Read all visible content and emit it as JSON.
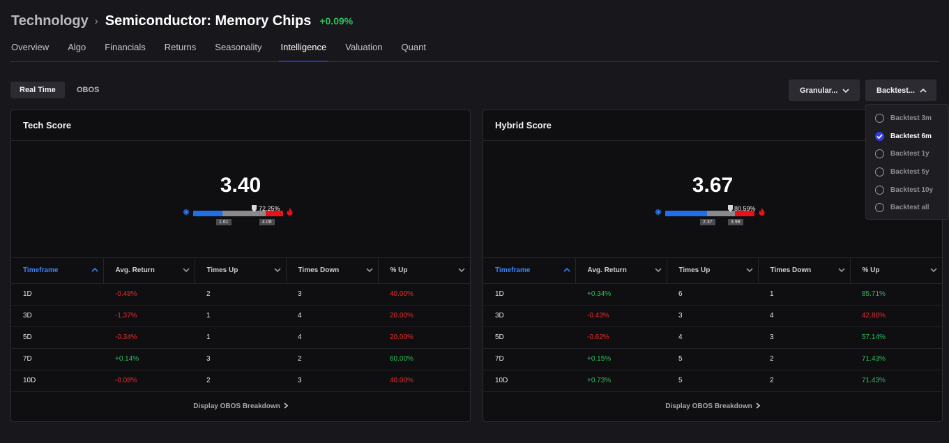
{
  "breadcrumb": {
    "parent": "Technology",
    "separator": "›",
    "current": "Semiconductor: Memory Chips",
    "change": "+0.09%"
  },
  "tabs": [
    {
      "label": "Overview",
      "active": false
    },
    {
      "label": "Algo",
      "active": false
    },
    {
      "label": "Financials",
      "active": false
    },
    {
      "label": "Returns",
      "active": false
    },
    {
      "label": "Seasonality",
      "active": false
    },
    {
      "label": "Intelligence",
      "active": true
    },
    {
      "label": "Valuation",
      "active": false
    },
    {
      "label": "Quant",
      "active": false
    }
  ],
  "mode": {
    "realtime": "Real Time",
    "obos": "OBOS",
    "selected": "Real Time"
  },
  "controls": {
    "granularity": "Granular...",
    "backtest": "Backtest..."
  },
  "backtest_menu": [
    {
      "label": "Backtest 3m",
      "checked": false
    },
    {
      "label": "Backtest 6m",
      "checked": true
    },
    {
      "label": "Backtest 1y",
      "checked": false
    },
    {
      "label": "Backtest 5y",
      "checked": false
    },
    {
      "label": "Backtest 10y",
      "checked": false
    },
    {
      "label": "Backtest all",
      "checked": false
    }
  ],
  "columns": [
    "Timeframe",
    "Avg. Return",
    "Times Up",
    "Times Down",
    "% Up"
  ],
  "panels": [
    {
      "title": "Tech Score",
      "score": "3.40",
      "gauge": {
        "percentile": "72.25%",
        "low": "1.61",
        "high": "4.08",
        "percentile_value": 0.7225
      },
      "rows": [
        [
          "1D",
          "-0.48%",
          "2",
          "3",
          "40.00%"
        ],
        [
          "3D",
          "-1.37%",
          "1",
          "4",
          "20.00%"
        ],
        [
          "5D",
          "-0.34%",
          "1",
          "4",
          "20.00%"
        ],
        [
          "7D",
          "+0.14%",
          "3",
          "2",
          "60.00%"
        ],
        [
          "10D",
          "-0.08%",
          "2",
          "3",
          "40.00%"
        ]
      ],
      "footer": "Display OBOS Breakdown"
    },
    {
      "title": "Hybrid Score",
      "score": "3.67",
      "gauge": {
        "percentile": "80.59%",
        "low": "2.37",
        "high": "3.98",
        "percentile_value": 0.8059
      },
      "rows": [
        [
          "1D",
          "+0.34%",
          "6",
          "1",
          "85.71%"
        ],
        [
          "3D",
          "-0.43%",
          "3",
          "4",
          "42.86%"
        ],
        [
          "5D",
          "-0.62%",
          "4",
          "3",
          "57.14%"
        ],
        [
          "7D",
          "+0.15%",
          "5",
          "2",
          "71.43%"
        ],
        [
          "10D",
          "+0.73%",
          "5",
          "2",
          "71.43%"
        ]
      ],
      "footer": "Display OBOS Breakdown"
    }
  ],
  "colors": {
    "positive": "#2fbf5a",
    "negative": "#ef2b2b",
    "accent": "#2f3ce8",
    "link": "#3b82f6",
    "gauge_blue": "#1f6fe8",
    "gauge_grey": "#8a8a8a",
    "gauge_red": "#e8121a"
  }
}
